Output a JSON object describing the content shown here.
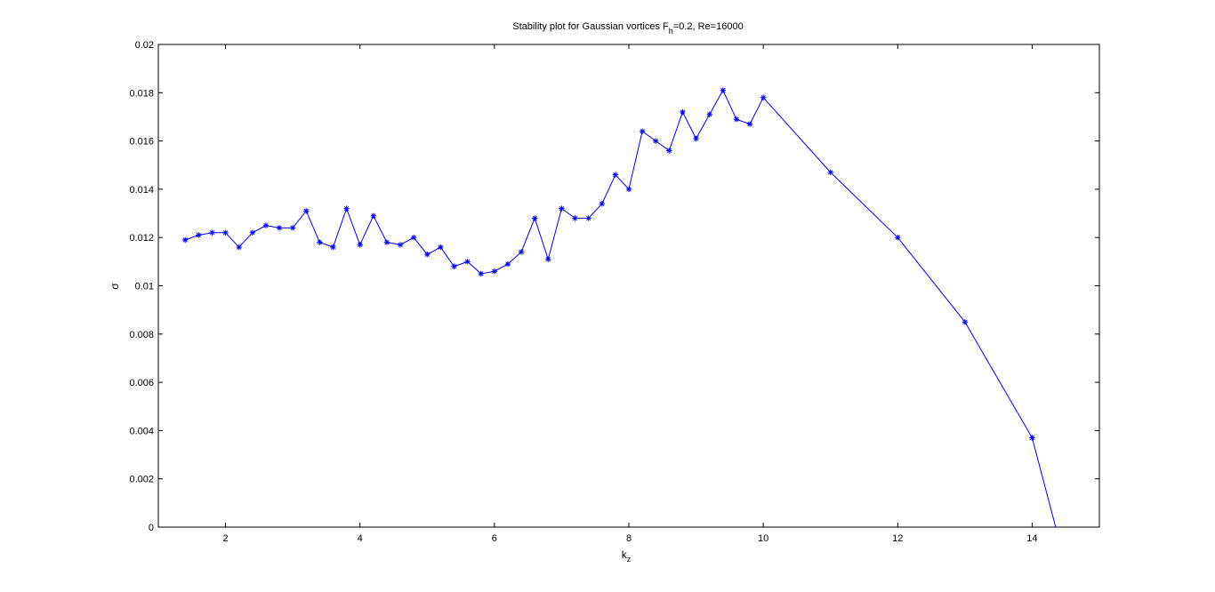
{
  "chart_data": {
    "type": "line",
    "title": "Stability plot for Gaussian vortices F",
    "title_subscript": "h",
    "title_suffix": "=0.2, Re=16000",
    "xlabel": "k",
    "xlabel_subscript": "z",
    "ylabel": "σ",
    "xlim": [
      1,
      15
    ],
    "ylim": [
      0,
      0.02
    ],
    "xticks": [
      2,
      4,
      6,
      8,
      10,
      12,
      14
    ],
    "xtick_labels": [
      "2",
      "4",
      "6",
      "8",
      "10",
      "12",
      "14"
    ],
    "yticks": [
      0,
      0.002,
      0.004,
      0.006,
      0.008,
      0.01,
      0.012,
      0.014,
      0.016,
      0.018,
      0.02
    ],
    "ytick_labels": [
      "0",
      "0.002",
      "0.004",
      "0.006",
      "0.008",
      "0.01",
      "0.012",
      "0.014",
      "0.016",
      "0.018",
      "0.02"
    ],
    "grid": false,
    "line_color": "#0000ff",
    "marker": "*",
    "series": [
      {
        "x": [
          1.4,
          1.6,
          1.8,
          2.0,
          2.2,
          2.4,
          2.6,
          2.8,
          3.0,
          3.2,
          3.4,
          3.6,
          3.8,
          4.0,
          4.2,
          4.4,
          4.6,
          4.8,
          5.0,
          5.2,
          5.4,
          5.6,
          5.8,
          6.0,
          6.2,
          6.4,
          6.6,
          6.8,
          7.0,
          7.2,
          7.4,
          7.6,
          7.8,
          8.0,
          8.2,
          8.4,
          8.6,
          8.8,
          9.0,
          9.2,
          9.4,
          9.6,
          9.8,
          10.0,
          11.0,
          12.0,
          13.0,
          14.0
        ],
        "y": [
          0.0119,
          0.0121,
          0.0122,
          0.0122,
          0.0116,
          0.0122,
          0.0125,
          0.0124,
          0.0124,
          0.0131,
          0.0118,
          0.0116,
          0.0132,
          0.0117,
          0.0129,
          0.0118,
          0.0117,
          0.012,
          0.0113,
          0.0116,
          0.0108,
          0.011,
          0.0105,
          0.0106,
          0.0109,
          0.0114,
          0.0128,
          0.0111,
          0.0132,
          0.0128,
          0.0128,
          0.0134,
          0.0146,
          0.014,
          0.0164,
          0.016,
          0.0156,
          0.0172,
          0.0161,
          0.0171,
          0.0181,
          0.0169,
          0.0167,
          0.0178,
          0.0147,
          0.012,
          0.0085,
          0.0037
        ]
      }
    ],
    "tail": {
      "x": [
        14.0,
        14.35
      ],
      "y": [
        0.0037,
        0.0
      ]
    }
  }
}
